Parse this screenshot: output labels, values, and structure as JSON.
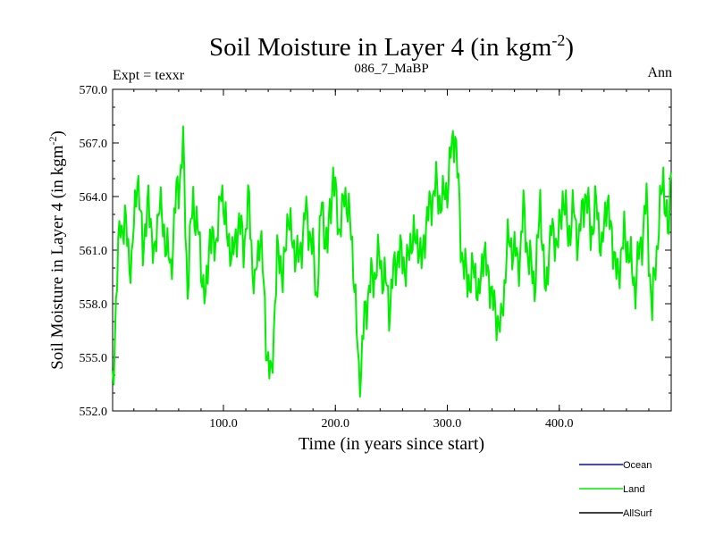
{
  "chart_data": {
    "type": "line",
    "title": "Soil Moisture in Layer 4 (in kgm",
    "title_sup": "-2",
    "title_end": ")",
    "left_label": "Expt = texxr",
    "center_label": "086_7_MaBP",
    "right_label": "Ann",
    "xlabel": "Time (in years since start)",
    "ylabel": "Soil Moisture in Layer 4 (in kgm",
    "ylabel_sup": "-2",
    "ylabel_end": ")",
    "xlim": [
      1,
      500
    ],
    "ylim": [
      552.0,
      570.0
    ],
    "x_ticks": [
      100,
      200,
      300,
      400
    ],
    "x_tick_labels": [
      "100.0",
      "200.0",
      "300.0",
      "400.0"
    ],
    "y_ticks": [
      552,
      555,
      558,
      561,
      564,
      567,
      570
    ],
    "y_tick_labels": [
      "552.0",
      "555.0",
      "558.0",
      "561.0",
      "564.0",
      "567.0",
      "570.0"
    ],
    "legend": [
      {
        "name": "Ocean",
        "color": "#0000ff"
      },
      {
        "name": "Land",
        "color": "#00ee00"
      },
      {
        "name": "AllSurf",
        "color": "#000000"
      }
    ],
    "series": [
      {
        "name": "Land",
        "color": "#00ee00",
        "anchors_x": [
          1,
          4,
          8,
          13,
          18,
          23,
          28,
          33,
          38,
          43,
          48,
          53,
          58,
          64,
          68,
          73,
          78,
          84,
          88,
          93,
          98,
          103,
          108,
          113,
          118,
          123,
          128,
          133,
          138,
          143,
          148,
          153,
          158,
          163,
          168,
          173,
          178,
          183,
          188,
          193,
          198,
          203,
          208,
          213,
          218,
          222,
          226,
          233,
          240,
          248,
          256,
          263,
          270,
          277,
          284,
          290,
          296,
          302,
          307,
          312,
          318,
          323,
          328,
          333,
          338,
          343,
          348,
          353,
          358,
          363,
          368,
          373,
          378,
          383,
          388,
          393,
          398,
          403,
          408,
          413,
          418,
          423,
          428,
          433,
          438,
          443,
          448,
          453,
          458,
          463,
          468,
          473,
          478,
          483,
          488,
          493,
          498,
          500
        ],
        "anchors_y": [
          553.5,
          558.0,
          562.8,
          562.0,
          560.0,
          565.5,
          561.0,
          563.8,
          560.5,
          563.8,
          561.5,
          560.0,
          564.0,
          566.5,
          559.0,
          564.0,
          561.5,
          558.0,
          562.0,
          561.0,
          564.5,
          562.0,
          560.5,
          562.5,
          561.5,
          563.5,
          558.5,
          562.5,
          556.0,
          553.5,
          561.0,
          559.5,
          563.0,
          561.0,
          560.5,
          563.0,
          562.0,
          558.5,
          563.5,
          561.0,
          565.5,
          562.0,
          564.0,
          563.0,
          558.0,
          553.0,
          557.5,
          559.5,
          560.5,
          558.0,
          561.0,
          560.0,
          562.0,
          560.5,
          563.5,
          564.5,
          563.5,
          565.5,
          568.0,
          561.5,
          559.0,
          560.0,
          558.5,
          561.0,
          559.0,
          557.5,
          556.5,
          561.0,
          561.5,
          560.0,
          563.0,
          560.5,
          559.0,
          563.5,
          558.5,
          562.5,
          561.0,
          564.0,
          562.0,
          563.0,
          561.5,
          564.5,
          562.0,
          563.5,
          561.0,
          564.0,
          561.0,
          559.5,
          562.0,
          560.5,
          559.0,
          561.5,
          563.5,
          557.5,
          562.0,
          565.0,
          561.5,
          566.5
        ]
      }
    ]
  }
}
